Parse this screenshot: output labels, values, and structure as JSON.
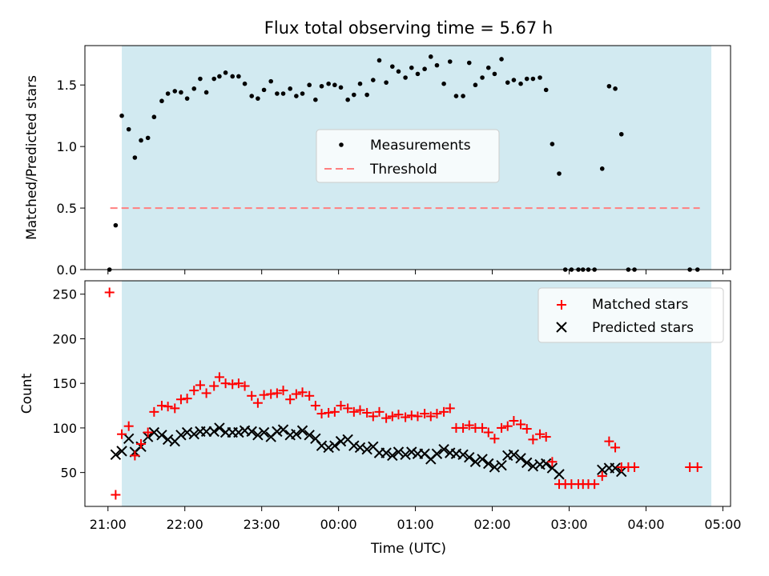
{
  "chart_data": [
    {
      "type": "scatter",
      "title": "Flux total observing time = 5.67 h",
      "ylabel": "Matched/Predicted stars",
      "xlabel": "",
      "ylim": [
        0,
        1.82
      ],
      "yticks": [
        "0.0",
        "0.5",
        "1.0",
        "1.5"
      ],
      "shaded_region": {
        "x_start": 21.18,
        "x_end": 28.85,
        "color": "#add8e6"
      },
      "legend": {
        "placement": "center",
        "entries": [
          "Measurements",
          "Threshold"
        ]
      },
      "threshold": {
        "name": "Threshold",
        "value": 0.5,
        "x_start": 21.03,
        "x_end": 28.7,
        "color": "#ff8080"
      },
      "series": [
        {
          "name": "Measurements",
          "marker": "dot",
          "color": "#000000",
          "points": [
            [
              21.02,
              0.0
            ],
            [
              21.1,
              0.36
            ],
            [
              21.18,
              1.25
            ],
            [
              21.27,
              1.14
            ],
            [
              21.35,
              0.91
            ],
            [
              21.43,
              1.05
            ],
            [
              21.52,
              1.07
            ],
            [
              21.6,
              1.24
            ],
            [
              21.7,
              1.37
            ],
            [
              21.78,
              1.43
            ],
            [
              21.87,
              1.45
            ],
            [
              21.95,
              1.44
            ],
            [
              22.03,
              1.39
            ],
            [
              22.12,
              1.47
            ],
            [
              22.2,
              1.55
            ],
            [
              22.28,
              1.44
            ],
            [
              22.38,
              1.55
            ],
            [
              22.45,
              1.57
            ],
            [
              22.53,
              1.6
            ],
            [
              22.62,
              1.57
            ],
            [
              22.7,
              1.57
            ],
            [
              22.78,
              1.51
            ],
            [
              22.87,
              1.41
            ],
            [
              22.95,
              1.39
            ],
            [
              23.03,
              1.46
            ],
            [
              23.12,
              1.53
            ],
            [
              23.2,
              1.43
            ],
            [
              23.28,
              1.43
            ],
            [
              23.37,
              1.47
            ],
            [
              23.45,
              1.41
            ],
            [
              23.53,
              1.43
            ],
            [
              23.62,
              1.5
            ],
            [
              23.7,
              1.38
            ],
            [
              23.78,
              1.49
            ],
            [
              23.87,
              1.51
            ],
            [
              23.95,
              1.5
            ],
            [
              24.03,
              1.48
            ],
            [
              24.12,
              1.38
            ],
            [
              24.2,
              1.42
            ],
            [
              24.28,
              1.51
            ],
            [
              24.37,
              1.42
            ],
            [
              24.45,
              1.54
            ],
            [
              24.53,
              1.7
            ],
            [
              24.62,
              1.52
            ],
            [
              24.7,
              1.65
            ],
            [
              24.78,
              1.61
            ],
            [
              24.87,
              1.56
            ],
            [
              24.95,
              1.64
            ],
            [
              25.03,
              1.59
            ],
            [
              25.12,
              1.63
            ],
            [
              25.2,
              1.73
            ],
            [
              25.28,
              1.66
            ],
            [
              25.37,
              1.51
            ],
            [
              25.45,
              1.69
            ],
            [
              25.53,
              1.41
            ],
            [
              25.62,
              1.41
            ],
            [
              25.7,
              1.68
            ],
            [
              25.78,
              1.5
            ],
            [
              25.87,
              1.56
            ],
            [
              25.95,
              1.64
            ],
            [
              26.03,
              1.59
            ],
            [
              26.12,
              1.71
            ],
            [
              26.2,
              1.52
            ],
            [
              26.28,
              1.54
            ],
            [
              26.37,
              1.51
            ],
            [
              26.45,
              1.55
            ],
            [
              26.53,
              1.55
            ],
            [
              26.62,
              1.56
            ],
            [
              26.7,
              1.46
            ],
            [
              26.78,
              1.02
            ],
            [
              26.87,
              0.78
            ],
            [
              26.95,
              0.0
            ],
            [
              27.03,
              0.0
            ],
            [
              27.12,
              0.0
            ],
            [
              27.18,
              0.0
            ],
            [
              27.25,
              0.0
            ],
            [
              27.33,
              0.0
            ],
            [
              27.43,
              0.82
            ],
            [
              27.52,
              1.49
            ],
            [
              27.6,
              1.47
            ],
            [
              27.68,
              1.1
            ],
            [
              27.77,
              0.0
            ],
            [
              27.85,
              0.0
            ],
            [
              28.57,
              0.0
            ],
            [
              28.67,
              0.0
            ]
          ]
        }
      ]
    },
    {
      "type": "scatter",
      "title": "",
      "ylabel": "Count",
      "xlabel": "Time (UTC)",
      "ylim": [
        12,
        265
      ],
      "yticks": [
        "50",
        "100",
        "150",
        "200",
        "250"
      ],
      "xticks": [
        "21:00",
        "22:00",
        "23:00",
        "00:00",
        "01:00",
        "02:00",
        "03:00",
        "04:00",
        "05:00"
      ],
      "shaded_region": {
        "x_start": 21.18,
        "x_end": 28.85,
        "color": "#add8e6"
      },
      "legend": {
        "placement": "top-right",
        "entries": [
          "Matched stars",
          "Predicted stars"
        ]
      },
      "series": [
        {
          "name": "Matched stars",
          "marker": "plus",
          "color": "#ff0000",
          "points": [
            [
              21.02,
              252
            ],
            [
              21.1,
              25
            ],
            [
              21.18,
              93
            ],
            [
              21.27,
              102
            ],
            [
              21.35,
              69
            ],
            [
              21.43,
              82
            ],
            [
              21.52,
              95
            ],
            [
              21.6,
              118
            ],
            [
              21.7,
              125
            ],
            [
              21.78,
              124
            ],
            [
              21.87,
              122
            ],
            [
              21.95,
              132
            ],
            [
              22.03,
              133
            ],
            [
              22.12,
              142
            ],
            [
              22.2,
              148
            ],
            [
              22.28,
              139
            ],
            [
              22.38,
              147
            ],
            [
              22.45,
              157
            ],
            [
              22.53,
              150
            ],
            [
              22.62,
              149
            ],
            [
              22.7,
              150
            ],
            [
              22.78,
              147
            ],
            [
              22.87,
              136
            ],
            [
              22.95,
              128
            ],
            [
              23.03,
              137
            ],
            [
              23.12,
              138
            ],
            [
              23.2,
              139
            ],
            [
              23.28,
              142
            ],
            [
              23.37,
              132
            ],
            [
              23.45,
              138
            ],
            [
              23.53,
              140
            ],
            [
              23.62,
              136
            ],
            [
              23.7,
              125
            ],
            [
              23.78,
              116
            ],
            [
              23.87,
              117
            ],
            [
              23.95,
              118
            ],
            [
              24.03,
              125
            ],
            [
              24.12,
              122
            ],
            [
              24.2,
              118
            ],
            [
              24.28,
              120
            ],
            [
              24.37,
              117
            ],
            [
              24.45,
              113
            ],
            [
              24.53,
              118
            ],
            [
              24.62,
              111
            ],
            [
              24.7,
              113
            ],
            [
              24.78,
              115
            ],
            [
              24.87,
              112
            ],
            [
              24.95,
              114
            ],
            [
              25.03,
              113
            ],
            [
              25.12,
              116
            ],
            [
              25.2,
              113
            ],
            [
              25.28,
              116
            ],
            [
              25.37,
              118
            ],
            [
              25.45,
              122
            ],
            [
              25.53,
              100
            ],
            [
              25.62,
              100
            ],
            [
              25.7,
              103
            ],
            [
              25.78,
              100
            ],
            [
              25.87,
              100
            ],
            [
              25.95,
              95
            ],
            [
              26.03,
              88
            ],
            [
              26.12,
              100
            ],
            [
              26.2,
              102
            ],
            [
              26.28,
              108
            ],
            [
              26.37,
              104
            ],
            [
              26.45,
              99
            ],
            [
              26.53,
              87
            ],
            [
              26.62,
              93
            ],
            [
              26.7,
              90
            ],
            [
              26.78,
              62
            ],
            [
              26.87,
              37
            ],
            [
              26.95,
              37
            ],
            [
              27.03,
              37
            ],
            [
              27.12,
              37
            ],
            [
              27.18,
              37
            ],
            [
              27.25,
              37
            ],
            [
              27.33,
              37
            ],
            [
              27.43,
              46
            ],
            [
              27.52,
              85
            ],
            [
              27.6,
              78
            ],
            [
              27.68,
              56
            ],
            [
              27.77,
              56
            ],
            [
              27.85,
              56
            ],
            [
              28.57,
              56
            ],
            [
              28.67,
              56
            ]
          ]
        },
        {
          "name": "Predicted stars",
          "marker": "x",
          "color": "#000000",
          "points": [
            [
              21.1,
              70
            ],
            [
              21.18,
              74
            ],
            [
              21.27,
              88
            ],
            [
              21.35,
              73
            ],
            [
              21.43,
              79
            ],
            [
              21.52,
              90
            ],
            [
              21.6,
              95
            ],
            [
              21.7,
              92
            ],
            [
              21.78,
              87
            ],
            [
              21.87,
              85
            ],
            [
              21.95,
              92
            ],
            [
              22.03,
              95
            ],
            [
              22.12,
              93
            ],
            [
              22.2,
              96
            ],
            [
              22.28,
              96
            ],
            [
              22.38,
              96
            ],
            [
              22.45,
              100
            ],
            [
              22.53,
              95
            ],
            [
              22.62,
              95
            ],
            [
              22.7,
              95
            ],
            [
              22.78,
              97
            ],
            [
              22.87,
              96
            ],
            [
              22.95,
              92
            ],
            [
              23.03,
              95
            ],
            [
              23.12,
              90
            ],
            [
              23.2,
              96
            ],
            [
              23.28,
              98
            ],
            [
              23.37,
              92
            ],
            [
              23.45,
              93
            ],
            [
              23.53,
              97
            ],
            [
              23.62,
              92
            ],
            [
              23.7,
              88
            ],
            [
              23.78,
              80
            ],
            [
              23.87,
              78
            ],
            [
              23.95,
              80
            ],
            [
              24.03,
              85
            ],
            [
              24.12,
              87
            ],
            [
              24.2,
              80
            ],
            [
              24.28,
              78
            ],
            [
              24.37,
              76
            ],
            [
              24.45,
              79
            ],
            [
              24.53,
              72
            ],
            [
              24.62,
              72
            ],
            [
              24.7,
              69
            ],
            [
              24.78,
              73
            ],
            [
              24.87,
              70
            ],
            [
              24.95,
              73
            ],
            [
              25.03,
              71
            ],
            [
              25.12,
              71
            ],
            [
              25.2,
              65
            ],
            [
              25.28,
              71
            ],
            [
              25.37,
              76
            ],
            [
              25.45,
              72
            ],
            [
              25.53,
              71
            ],
            [
              25.62,
              70
            ],
            [
              25.7,
              67
            ],
            [
              25.78,
              62
            ],
            [
              25.87,
              65
            ],
            [
              25.95,
              60
            ],
            [
              26.03,
              56
            ],
            [
              26.12,
              58
            ],
            [
              26.2,
              69
            ],
            [
              26.28,
              70
            ],
            [
              26.37,
              66
            ],
            [
              26.45,
              61
            ],
            [
              26.53,
              57
            ],
            [
              26.62,
              59
            ],
            [
              26.7,
              60
            ],
            [
              26.78,
              55
            ],
            [
              26.87,
              48
            ],
            [
              27.43,
              53
            ],
            [
              27.52,
              55
            ],
            [
              27.6,
              55
            ],
            [
              27.68,
              51
            ]
          ]
        }
      ]
    }
  ]
}
